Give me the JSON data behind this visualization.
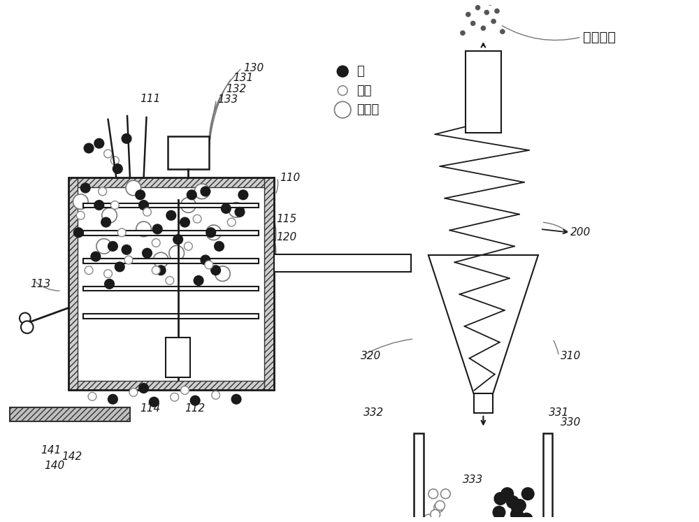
{
  "bg_color": "#ffffff",
  "line_color": "#1a1a1a",
  "legend_items": [
    {
      "label": "碳",
      "fc": "#1a1a1a",
      "ec": "#1a1a1a",
      "r": 0.008
    },
    {
      "label": "灰分",
      "fc": "#ffffff",
      "ec": "#888888",
      "r": 0.007
    },
    {
      "label": "带电球",
      "fc": "#ffffff",
      "ec": "#555555",
      "r": 0.012
    }
  ],
  "superfine_dust_label": "超细灰尘"
}
